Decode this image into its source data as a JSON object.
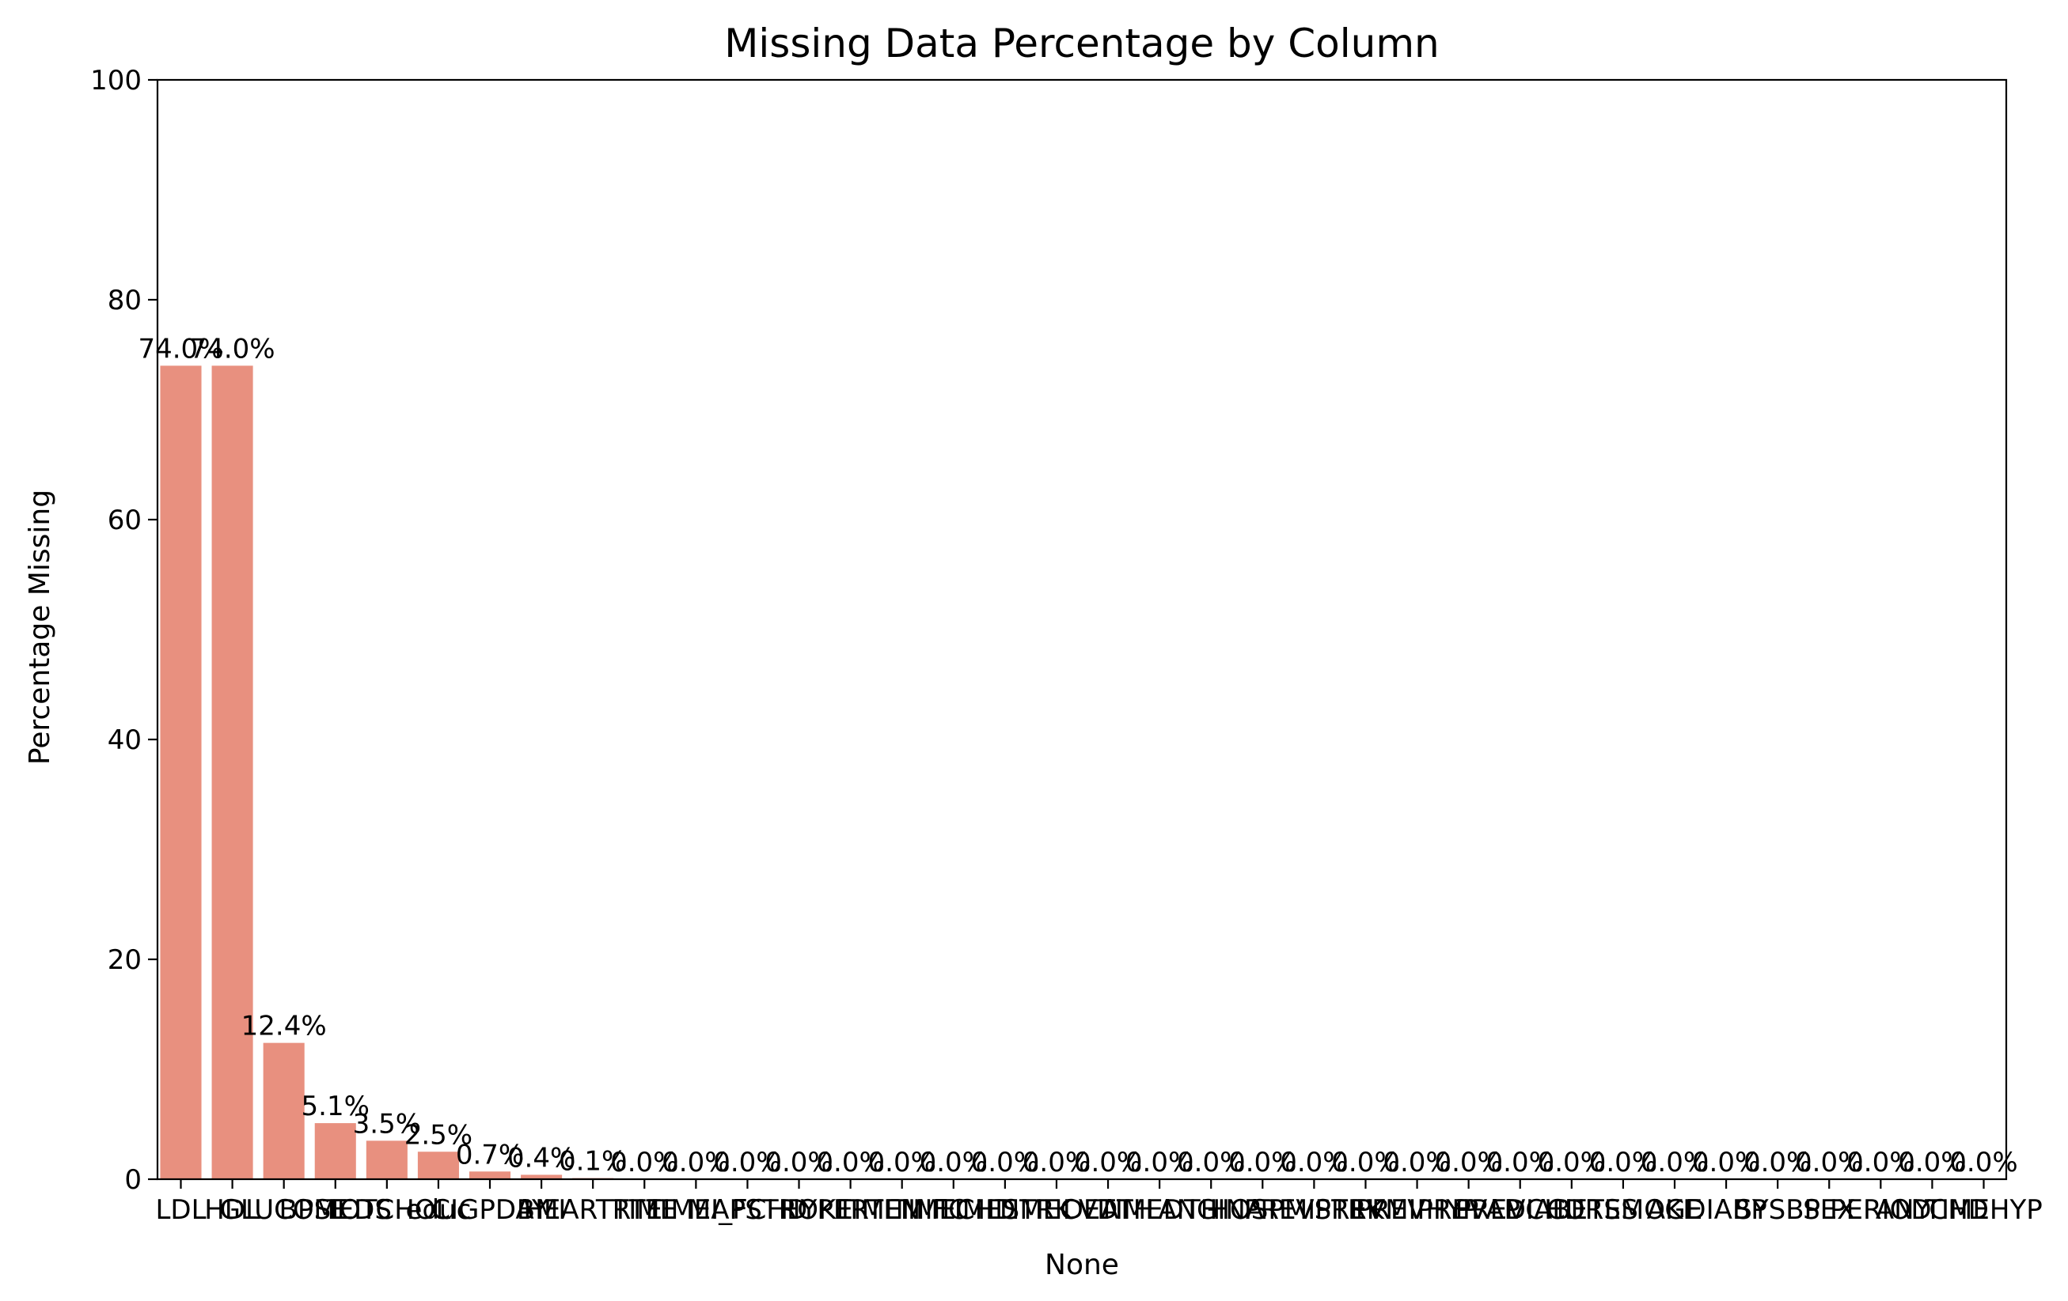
{
  "chart_data": {
    "type": "bar",
    "title": "Missing Data Percentage by Column",
    "xlabel": "None",
    "ylabel": "Percentage Missing",
    "ylim": [
      0,
      100
    ],
    "yticks": [
      "0",
      "20",
      "40",
      "60",
      "80",
      "100"
    ],
    "grid": false,
    "legend": "none",
    "bar_color": "#e8907f",
    "categories": [
      "LDL",
      "HDL",
      "GLUCOSE",
      "BPMEDS",
      "TOTCHOL",
      "educ",
      "CIGPDAY",
      "BMI",
      "HEARTRTE",
      "TIME",
      "TIMEAP",
      "MI_FCHD",
      "STROKE",
      "HYPERTEN",
      "TIMEMIFC",
      "TIMECHD",
      "TIMESTRK",
      "TIMECVD",
      "DEATH",
      "TIMEDTH",
      "ANGINA",
      "HOSPMI",
      "PREVSTRK",
      "PREVMI",
      "PREVHYP",
      "PREVAP",
      "PREVCHD",
      "DIABETES",
      "CURSMOKE",
      "AGE",
      "DIABP",
      "SYSBP",
      "SEX",
      "PERIOD",
      "ANYCHD",
      "TIMEHYP"
    ],
    "values": [
      74.0,
      74.0,
      12.4,
      5.1,
      3.5,
      2.5,
      0.7,
      0.4,
      0.1,
      0.0,
      0.0,
      0.0,
      0.0,
      0.0,
      0.0,
      0.0,
      0.0,
      0.0,
      0.0,
      0.0,
      0.0,
      0.0,
      0.0,
      0.0,
      0.0,
      0.0,
      0.0,
      0.0,
      0.0,
      0.0,
      0.0,
      0.0,
      0.0,
      0.0,
      0.0,
      0.0
    ],
    "value_labels": [
      "74.0%",
      "74.0%",
      "12.4%",
      "5.1%",
      "3.5%",
      "2.5%",
      "0.7%",
      "0.4%",
      "0.1%",
      "0.0%",
      "0.0%",
      "0.0%",
      "0.0%",
      "0.0%",
      "0.0%",
      "0.0%",
      "0.0%",
      "0.0%",
      "0.0%",
      "0.0%",
      "0.0%",
      "0.0%",
      "0.0%",
      "0.0%",
      "0.0%",
      "0.0%",
      "0.0%",
      "0.0%",
      "0.0%",
      "0.0%",
      "0.0%",
      "0.0%",
      "0.0%",
      "0.0%",
      "0.0%",
      "0.0%"
    ]
  }
}
